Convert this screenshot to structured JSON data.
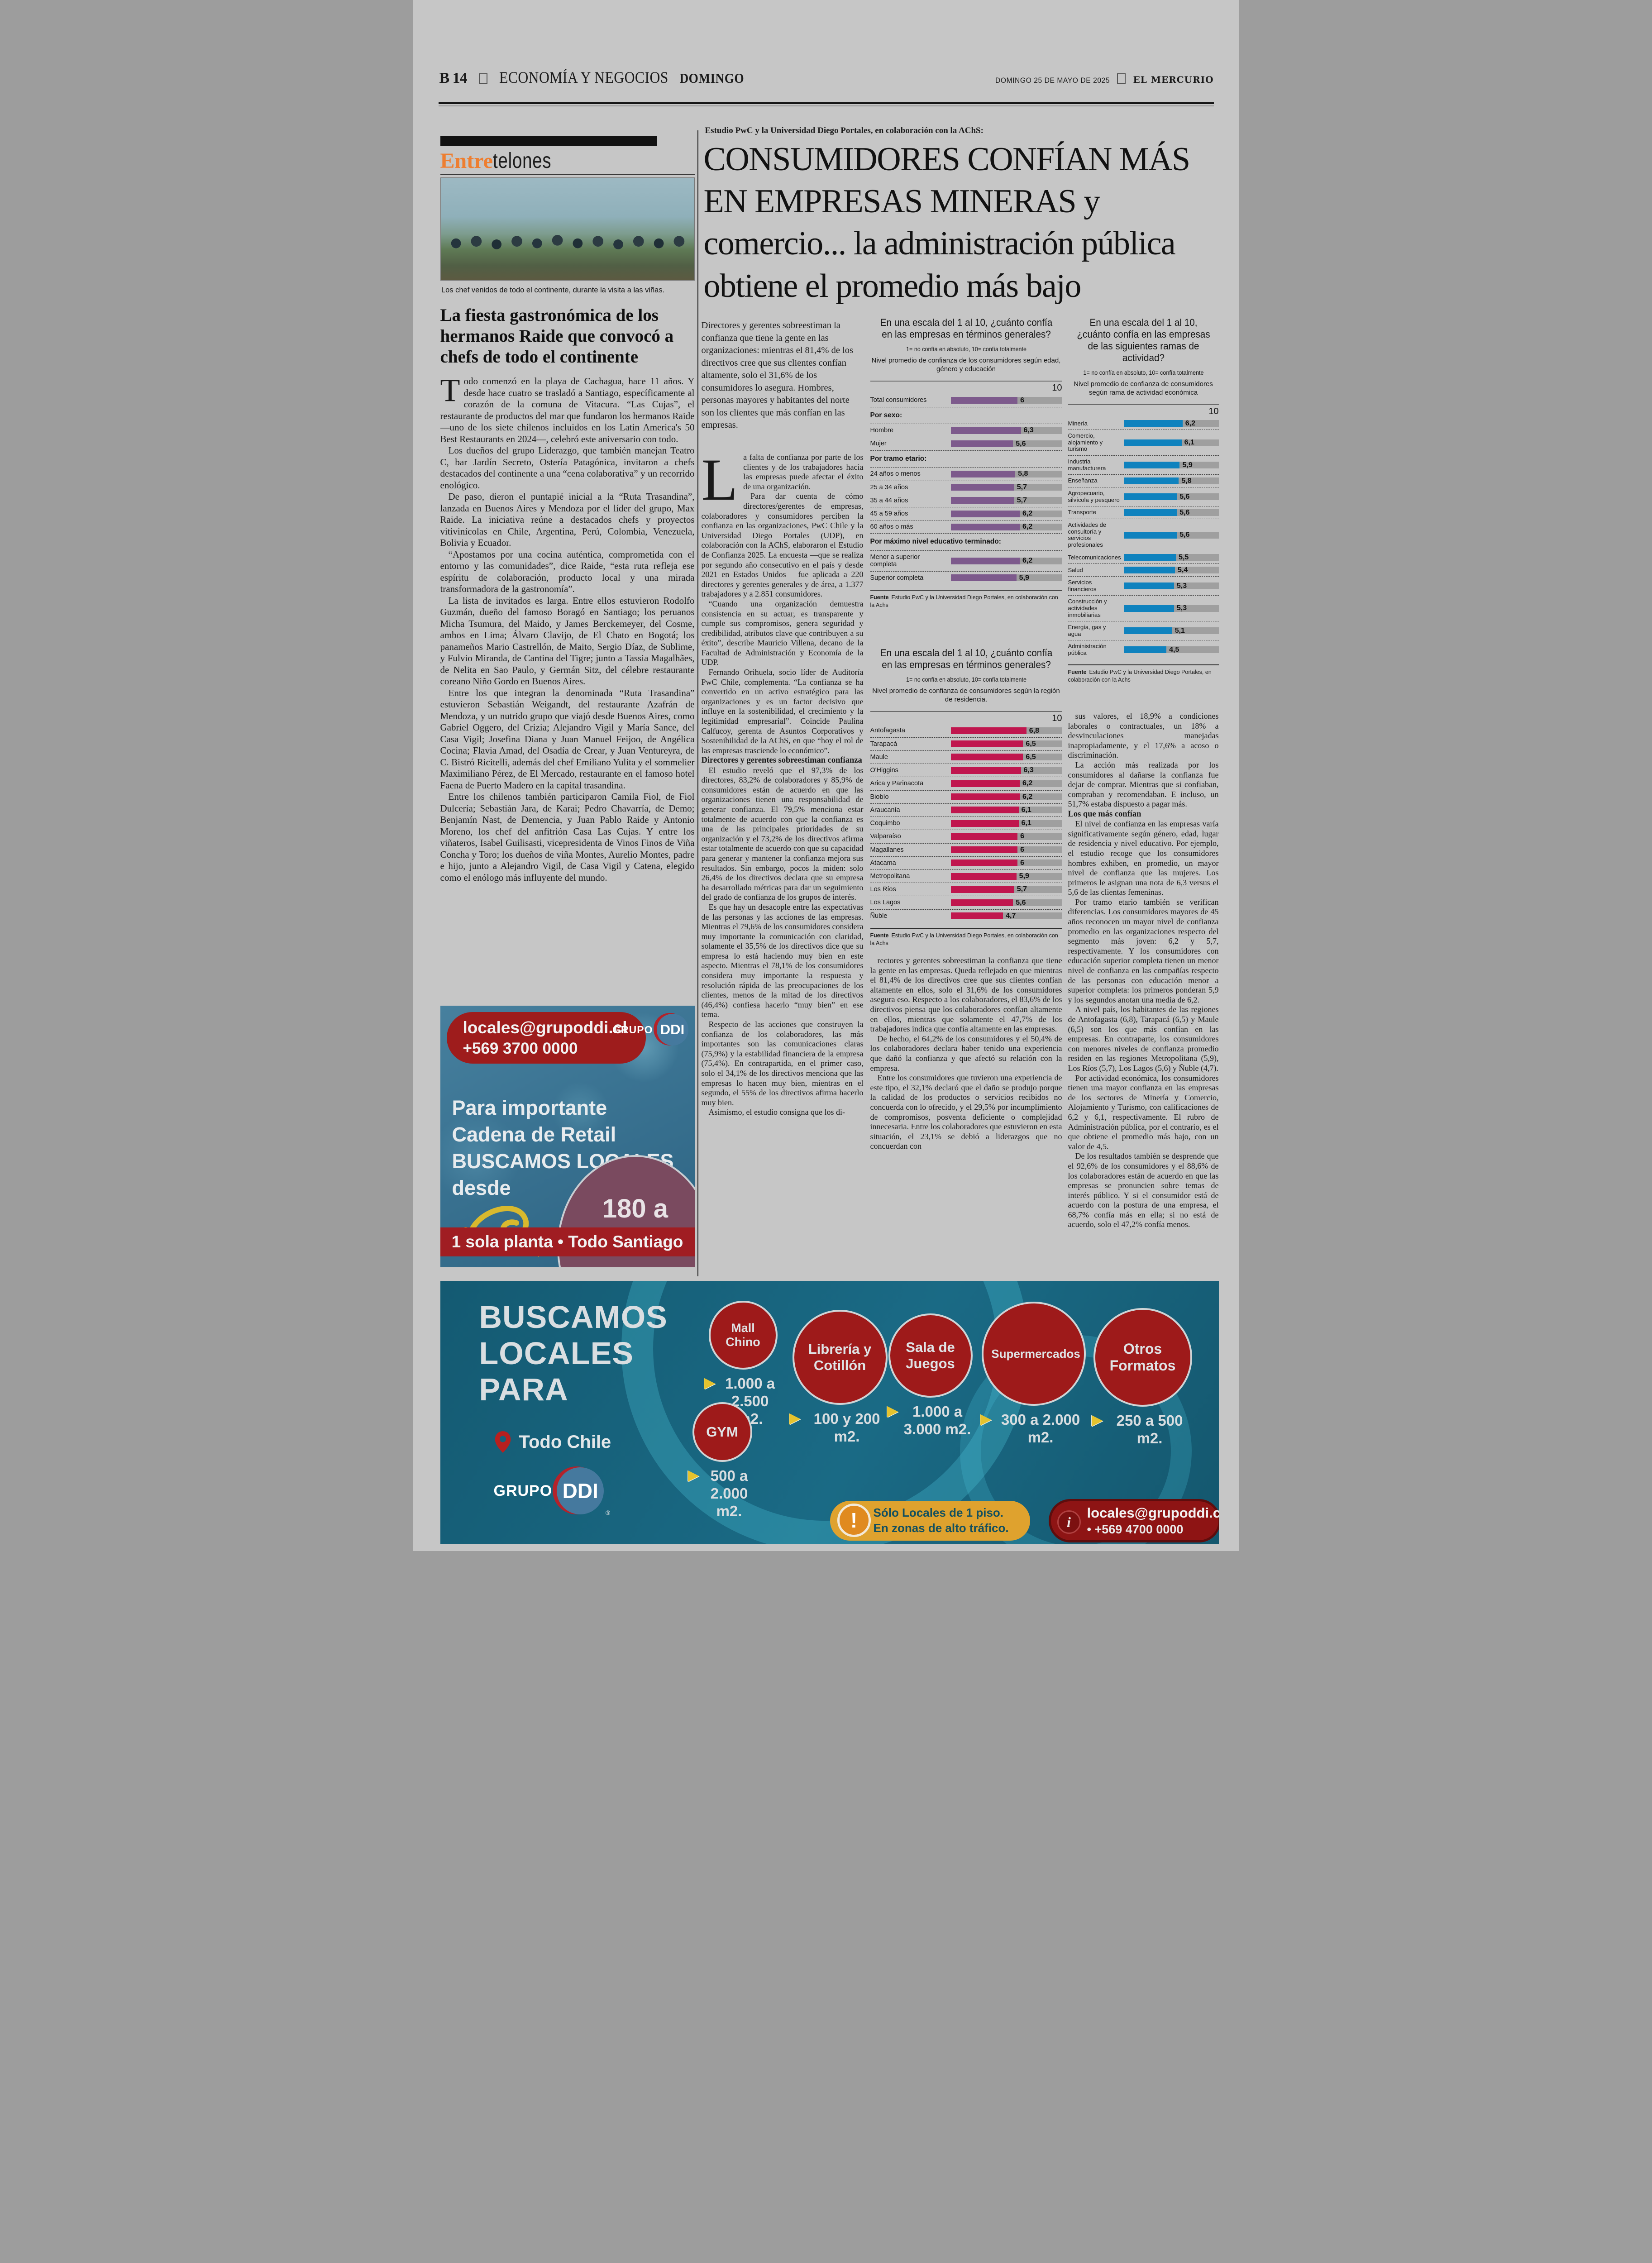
{
  "masthead": {
    "page_number": "B 14",
    "section": "ECONOMÍA Y NEGOCIOS",
    "day": "DOMINGO",
    "date": "DOMINGO 25 DE MAYO DE 2025",
    "paper": "EL MERCURIO"
  },
  "entretelones": {
    "brand_left": "Entre",
    "brand_right": "telones",
    "photo_caption": "Los chef venidos de todo el continente, durante la visita a las viñas.",
    "headline": "La fiesta gastronómica de los hermanos Raide que convocó a chefs de todo el continente",
    "lead_paragraph": "Todo comenzó en la playa de Cachagua, hace 11 años. Y desde hace cuatro se trasladó a Santiago, específicamente al corazón de la comuna de Vitacura. “Las Cujas”, el restaurante de productos del mar que fundaron los hermanos Raide —uno de los siete chilenos incluidos en los Latin America's 50 Best Restaurants en 2024—, celebró este aniversario con todo.",
    "paragraphs": [
      "Los dueños del grupo Liderazgo, que también manejan Teatro C, bar Jardín Secreto, Ostería Patagónica, invitaron a chefs destacados del continente a una “cena colaborativa” y un recorrido enológico.",
      "De paso, dieron el puntapié inicial a la “Ruta Trasandina”, lanzada en Buenos Aires y Mendoza por el líder del grupo, Max Raide. La iniciativa reúne a destacados chefs y proyectos vitivinícolas en Chile, Argentina, Perú, Colombia, Venezuela, Bolivia y Ecuador.",
      "“Apostamos por una cocina auténtica, comprometida con el entorno y las comunidades”, dice Raide, “esta ruta refleja ese espíritu de colaboración, producto local y una mirada transformadora de la gastronomía”.",
      "La lista de invitados es larga. Entre ellos estuvieron Rodolfo Guzmán, dueño del famoso Boragó en Santiago; los peruanos Micha Tsumura, del Maido, y James Berckemeyer, del Cosme, ambos en Lima; Álvaro Clavijo, de El Chato en Bogotá; los panameños Mario Castrellón, de Maito, Sergio Díaz, de Sublime, y Fulvio Miranda, de Cantina del Tigre; junto a Tassia Magalhães, de Nelita en Sao Paulo, y Germán Sitz, del célebre restaurante coreano Niño Gordo en Buenos Aires.",
      "Entre los que integran la denominada “Ruta Trasandina” estuvieron Sebastián Weigandt, del restaurante Azafrán de Mendoza, y un nutrido grupo que viajó desde Buenos Aires, como Gabriel Oggero, del Crizia; Alejandro Vigil y María Sance, del Casa Vigil; Josefina Diana y Juan Manuel Feijoo, de Angélica Cocina; Flavia Amad, del Osadía de Crear, y Juan Ventureyra, de C. Bistró Ricitelli, además del chef Emiliano Yulita y el sommelier Maximiliano Pérez, de El Mercado, restaurante en el famoso hotel Faena de Puerto Madero en la capital trasandina.",
      "Entre los chilenos también participaron Camila Fiol, de Fiol Dulcería; Sebastián Jara, de Karai; Pedro Chavarría, de Demo; Benjamín Nast, de Demencia, y Juan Pablo Raide y Antonio Moreno, los chef del anfitrión Casa Las Cujas. Y entre los viñateros, Isabel Guilisasti, vicepresidenta de Vinos Finos de Viña Concha y Toro; los dueños de viña Montes, Aurelio Montes, padre e hijo, junto a Alejandro Vigil, de Casa Vigil y Catena, elegido como el enólogo más influyente del mundo."
    ]
  },
  "article": {
    "kicker": "Estudio PwC y la Universidad Diego Portales, en colaboración con la AChS:",
    "headline_lines": [
      "CONSUMIDORES CONFÍAN MÁS",
      "EN EMPRESAS MINERAS y",
      "comercio... la administración pública",
      "obtiene el promedio más bajo"
    ],
    "lede": "Directores y gerentes sobreestiman la confianza que tiene la gente en las organizaciones: mientras el 81,4% de los directivos cree que sus clientes confían altamente, solo el 31,6% de los consumidores lo asegura. Hombres, personas mayores y habitantes del norte son los clientes que más confían en las empresas.",
    "col1": {
      "dropcap_paragraph": "La falta de confianza por parte de los clientes y de los trabajadores hacia las empresas puede afectar el éxito de una organización.",
      "paras_a": [
        "Para dar cuenta de cómo directores/gerentes de empresas, colaboradores y consumidores perciben la confianza en las organizaciones, PwC Chile y la Universidad Diego Portales (UDP), en colaboración con la AChS, elaboraron el Estudio de Confianza 2025. La encuesta —que se realiza por segundo año consecutivo en el país y desde 2021 en Estados Unidos— fue aplicada a 220 directores y gerentes generales y de área, a 1.377 trabajadores y a 2.851 consumidores.",
        "“Cuando una organización demuestra consistencia en su actuar, es transparente y cumple sus compromisos, genera seguridad y credibilidad, atributos clave que contribuyen a su éxito”, describe Mauricio Villena, decano de la Facultad de Administración y Economía de la UDP.",
        "Fernando Orihuela, socio líder de Auditoría PwC Chile, complementa. “La confianza se ha convertido en un activo estratégico para las organizaciones y es un factor decisivo que influye en la sostenibilidad, el crecimiento y la legitimidad empresarial”. Coincide Paulina Calfucoy, gerenta de Asuntos Corporativos y Sostenibilidad de la AChS, en que “hoy el rol de las empresas trasciende lo económico”."
      ],
      "subhead": "Directores y gerentes sobreestiman confianza",
      "paras_b": [
        "El estudio reveló que el 97,3% de los directores, 83,2% de colaboradores y 85,9% de consumidores están de acuerdo en que las organizaciones tienen una responsabilidad de generar confianza. El 79,5% menciona estar totalmente de acuerdo con que la confianza es una de las principales prioridades de su organización y el 73,2% de los directivos afirma estar totalmente de acuerdo con que su capacidad para generar y mantener la confianza mejora sus resultados. Sin embargo, pocos la miden: solo 26,4% de los directivos declara que su empresa ha desarrollado métricas para dar un seguimiento del grado de confianza de los grupos de interés.",
        "Es que hay un desacople entre las expectativas de las personas y las acciones de las empresas. Mientras el 79,6% de los consumidores considera muy importante la comunicación con claridad, solamente el 35,5% de los directivos dice que su empresa lo está haciendo muy bien en este aspecto. Mientras el 78,1% de los consumidores considera muy importante la respuesta y resolución rápida de las preocupaciones de los clientes, menos de la mitad de los directivos (46,4%) confiesa hacerlo “muy bien” en ese tema.",
        "Respecto de las acciones que construyen la confianza de los colaboradores, las más importantes son las comunicaciones claras (75,9%) y la estabilidad financiera de la empresa (75,4%). En contrapartida, en el primer caso, solo el 34,1% de los directivos menciona que las empresas lo hacen muy bien, mientras en el segundo, el 55% de los directivos afirma hacerlo muy bien.",
        "Asimismo, el estudio consigna que los di-"
      ]
    },
    "col2": {
      "paragraphs": [
        "rectores y gerentes sobreestiman la confianza que tiene la gente en las empresas. Queda reflejado en que mientras el 81,4% de los directivos cree que sus clientes confían altamente en ellos, solo el 31,6% de los consumidores asegura eso. Respecto a los colaboradores, el 83,6% de los directivos piensa que los colaboradores confían altamente en ellos, mientras que solamente el 47,7% de los trabajadores indica que confía altamente en las empresas.",
        "De hecho, el 64,2% de los consumidores y el 50,4% de los colaboradores declara haber tenido una experiencia que dañó la confianza y que afectó su relación con la empresa.",
        "Entre los consumidores que tuvieron una experiencia de este tipo, el 32,1% declaró que el daño se produjo porque la calidad de los productos o servicios recibidos no concuerda con lo ofrecido, y el 29,5% por incumplimiento de compromisos, posventa deficiente o complejidad innecesaria. Entre los colaboradores que estuvieron en esta situación, el 23,1% se debió a liderazgos que no concuerdan con"
      ]
    },
    "col3": {
      "paras_a": [
        "sus valores, el 18,9% a condiciones laborales o contractuales, un 18% a desvinculaciones manejadas inapropiadamente, y el 17,6% a acoso o discriminación.",
        "La acción más realizada por los consumidores al dañarse la confianza fue dejar de comprar. Mientras que si confiaban, compraban y recomendaban. E incluso, un 51,7% estaba dispuesto a pagar más."
      ],
      "subhead": "Los que más confían",
      "paras_b": [
        "El nivel de confianza en las empresas varía significativamente según género, edad, lugar de residencia y nivel educativo. Por ejemplo, el estudio recoge que los consumidores hombres exhiben, en promedio, un mayor nivel de confianza que las mujeres. Los primeros le asignan una nota de 6,3 versus el 5,6 de las clientas femeninas.",
        "Por tramo etario también se verifican diferencias. Los consumidores mayores de 45 años reconocen un mayor nivel de confianza promedio en las organizaciones respecto del segmento más joven: 6,2 y 5,7, respectivamente. Y los consumidores con educación superior completa tienen un menor nivel de confianza en las compañías respecto de las personas con educación menor a superior completa: los primeros ponderan 5,9 y los segundos anotan una media de 6,2.",
        "A nivel país, los habitantes de las regiones de Antofagasta (6,8), Tarapacá (6,5) y Maule (6,5) son los que más confían en las empresas. En contraparte, los consumidores con menores niveles de confianza promedio residen en las regiones Metropolitana (5,9), Los Ríos (5,7), Los Lagos (5,6) y Ñuble (4,7).",
        "Por actividad económica, los consumidores tienen una mayor confianza en las empresas de los sectores de Minería y Comercio, Alojamiento y Turismo, con calificaciones de 6,2 y 6,1, respectivamente. El rubro de Administración pública, por el contrario, es el que obtiene el promedio más bajo, con un valor de 4,5.",
        "De los resultados también se desprende que el 92,6% de los consumidores y el 88,6% de los colaboradores están de acuerdo en que las empresas se pronuncien sobre temas de interés público. Y si el consumidor está de acuerdo con la postura de una empresa, el 68,7% confía más en ella; si no está de acuerdo, solo el 47,2% confía menos."
      ]
    }
  },
  "chart_data": [
    {
      "type": "bar",
      "title": "En una escala del 1 al 10, ¿cuánto confía en las empresas en términos generales?",
      "scale_note": "1= no confía en absoluto, 10= confía totalmente",
      "subtitle": "Nivel promedio de confianza de los consumidores según edad, género y educación",
      "xlim": [
        0,
        10
      ],
      "axis_max_label": "10",
      "bar_color": "#7d5a8c",
      "track_color": "#9f9f9f",
      "legend_position": "none",
      "grid": false,
      "rows": [
        {
          "label": "Total consumidores",
          "value": 6,
          "display": "6"
        },
        {
          "header": "Por sexo:"
        },
        {
          "label": "Hombre",
          "value": 6.3,
          "display": "6,3"
        },
        {
          "label": "Mujer",
          "value": 5.6,
          "display": "5,6"
        },
        {
          "header": "Por tramo etario:"
        },
        {
          "label": "24 años o menos",
          "value": 5.8,
          "display": "5,8"
        },
        {
          "label": "25 a 34 años",
          "value": 5.7,
          "display": "5,7"
        },
        {
          "label": "35 a 44 años",
          "value": 5.7,
          "display": "5,7"
        },
        {
          "label": "45 a 59 años",
          "value": 6.2,
          "display": "6,2"
        },
        {
          "label": "60 años o más",
          "value": 6.2,
          "display": "6,2"
        },
        {
          "header": "Por máximo nivel educativo terminado:"
        },
        {
          "label": "Menor a superior completa",
          "value": 6.2,
          "display": "6,2"
        },
        {
          "label": "Superior completa",
          "value": 5.9,
          "display": "5,9"
        }
      ],
      "source_label": "Fuente",
      "source_text": "Estudio PwC y la Universidad Diego Portales, en colaboración con la Achs"
    },
    {
      "type": "bar",
      "title": "En una escala del 1 al 10, ¿cuánto confía en las empresas de las siguientes ramas de actividad?",
      "scale_note": "1= no confía en absoluto, 10= confía totalmente",
      "subtitle": "Nivel promedio de confianza de consumidores según rama de actividad económica",
      "xlim": [
        0,
        10
      ],
      "axis_max_label": "10",
      "bar_color": "#0f82be",
      "track_color": "#9f9f9f",
      "legend_position": "none",
      "grid": false,
      "rows": [
        {
          "label": "Minería",
          "value": 6.2,
          "display": "6,2"
        },
        {
          "label": "Comercio, alojamiento y turismo",
          "value": 6.1,
          "display": "6,1"
        },
        {
          "label": "Industria manufacturera",
          "value": 5.9,
          "display": "5,9"
        },
        {
          "label": "Enseñanza",
          "value": 5.8,
          "display": "5,8"
        },
        {
          "label": "Agropecuario, silvícola y pesquero",
          "value": 5.6,
          "display": "5,6"
        },
        {
          "label": "Transporte",
          "value": 5.6,
          "display": "5,6"
        },
        {
          "label": "Actividades de consultoría y servicios profesionales",
          "value": 5.6,
          "display": "5,6"
        },
        {
          "label": "Telecomunicaciones",
          "value": 5.5,
          "display": "5,5"
        },
        {
          "label": "Salud",
          "value": 5.4,
          "display": "5,4"
        },
        {
          "label": "Servicios financieros",
          "value": 5.3,
          "display": "5,3"
        },
        {
          "label": "Construcción y actividades inmobiliarias",
          "value": 5.3,
          "display": "5,3"
        },
        {
          "label": "Energía, gas y agua",
          "value": 5.1,
          "display": "5,1"
        },
        {
          "label": "Administración pública",
          "value": 4.5,
          "display": "4,5"
        }
      ],
      "source_label": "Fuente",
      "source_text": "Estudio PwC y la Universidad Diego Portales, en colaboración con la Achs"
    },
    {
      "type": "bar",
      "title": "En una escala del 1 al 10, ¿cuánto confía en las empresas en términos generales?",
      "scale_note": "1= no confía en absoluto, 10= confía totalmente",
      "subtitle": "Nivel promedio de confianza de consumidores según la región de residencia.",
      "xlim": [
        0,
        10
      ],
      "axis_max_label": "10",
      "bar_color": "#c0164e",
      "track_color": "#9f9f9f",
      "legend_position": "none",
      "grid": false,
      "rows": [
        {
          "label": "Antofagasta",
          "value": 6.8,
          "display": "6,8"
        },
        {
          "label": "Tarapacá",
          "value": 6.5,
          "display": "6,5"
        },
        {
          "label": "Maule",
          "value": 6.5,
          "display": "6,5"
        },
        {
          "label": "O'Higgins",
          "value": 6.3,
          "display": "6,3"
        },
        {
          "label": "Arica y Parinacota",
          "value": 6.2,
          "display": "6,2"
        },
        {
          "label": "Biobío",
          "value": 6.2,
          "display": "6,2"
        },
        {
          "label": "Araucanía",
          "value": 6.1,
          "display": "6,1"
        },
        {
          "label": "Coquimbo",
          "value": 6.1,
          "display": "6,1"
        },
        {
          "label": "Valparaíso",
          "value": 6,
          "display": "6"
        },
        {
          "label": "Magallanes",
          "value": 6,
          "display": "6"
        },
        {
          "label": "Atacama",
          "value": 6,
          "display": "6"
        },
        {
          "label": "Metropolitana",
          "value": 5.9,
          "display": "5,9"
        },
        {
          "label": "Los Ríos",
          "value": 5.7,
          "display": "5,7"
        },
        {
          "label": "Los Lagos",
          "value": 5.6,
          "display": "5,6"
        },
        {
          "label": "Ñuble",
          "value": 4.7,
          "display": "4,7"
        }
      ],
      "source_label": "Fuente",
      "source_text": "Estudio PwC y la Universidad Diego Portales, en colaboración con la Achs"
    }
  ],
  "ad_retail": {
    "contact_email": "locales@grupoddi.cl",
    "contact_phone": "+569 3700 0000",
    "logo_grupo": "GRUPO",
    "logo_ddi": "DDI",
    "line1": "Para importante",
    "line2": "Cadena de Retail",
    "line3": "BUSCAMOS LOCALES",
    "line4": "desde",
    "badge_line1": "180 a",
    "badge_line2": "250 m2.",
    "footer": "1 sola planta • Todo Santiago"
  },
  "ad_locales": {
    "title_line1": "BUSCAMOS",
    "title_line2": "LOCALES",
    "title_line3": "PARA",
    "coverage": "Todo Chile",
    "logo_grupo": "GRUPO",
    "logo_ddi": "DDI",
    "logo_registered": "®",
    "items": [
      {
        "name": "Mall Chino",
        "size": "1.000 a 2.500 m2."
      },
      {
        "name": "Librería y Cotillón",
        "size": "100 y 200 m2."
      },
      {
        "name": "Sala de Juegos",
        "size": "1.000 a 3.000 m2."
      },
      {
        "name": "Supermercados",
        "size": "300 a 2.000 m2."
      },
      {
        "name": "Otros Formatos",
        "size": "250 a 500 m2."
      },
      {
        "name": "GYM",
        "size": "500 a 2.000 m2."
      }
    ],
    "notice_line1": "Sólo Locales de 1 piso.",
    "notice_line2": "En zonas de alto tráfico.",
    "notice_icon": "!",
    "contact_icon": "i",
    "contact_email": "locales@grupoddi.cl",
    "contact_phone": "• +569 4700 0000"
  }
}
